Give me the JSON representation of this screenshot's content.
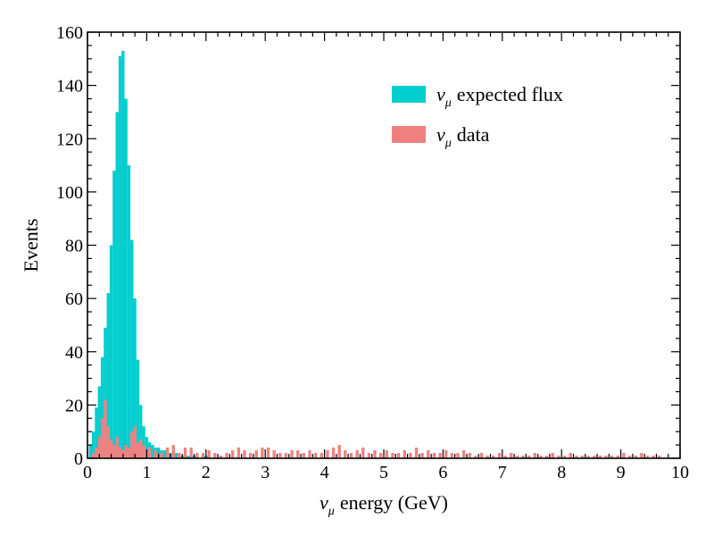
{
  "chart_data": {
    "type": "bar",
    "xlabel": {
      "symbol": "ν",
      "subscript": "μ",
      "text": "energy (GeV)"
    },
    "ylabel": "Events",
    "xlim": [
      0,
      10
    ],
    "ylim": [
      0,
      160
    ],
    "xticks": [
      "0",
      "1",
      "2",
      "3",
      "4",
      "5",
      "6",
      "7",
      "8",
      "9",
      "10"
    ],
    "yticks": [
      "0",
      "20",
      "40",
      "60",
      "80",
      "100",
      "120",
      "140",
      "160"
    ],
    "legend_position": "upper-right",
    "series": [
      {
        "name": {
          "symbol": "ν",
          "subscript": "μ",
          "text": "expected flux"
        },
        "color": "#00cdcd",
        "points": [
          [
            0.05,
            5
          ],
          [
            0.1,
            10
          ],
          [
            0.15,
            19
          ],
          [
            0.2,
            27
          ],
          [
            0.25,
            38
          ],
          [
            0.3,
            49
          ],
          [
            0.35,
            62
          ],
          [
            0.4,
            80
          ],
          [
            0.45,
            108
          ],
          [
            0.5,
            130
          ],
          [
            0.55,
            151
          ],
          [
            0.6,
            153
          ],
          [
            0.65,
            135
          ],
          [
            0.7,
            110
          ],
          [
            0.75,
            82
          ],
          [
            0.8,
            60
          ],
          [
            0.85,
            37
          ],
          [
            0.9,
            20
          ],
          [
            0.95,
            12
          ],
          [
            1.0,
            8
          ],
          [
            1.05,
            6
          ],
          [
            1.1,
            5
          ],
          [
            1.15,
            4
          ],
          [
            1.2,
            4
          ],
          [
            1.25,
            3
          ],
          [
            1.3,
            3
          ],
          [
            1.35,
            2
          ],
          [
            1.4,
            2
          ],
          [
            1.5,
            2
          ],
          [
            1.6,
            1
          ],
          [
            1.7,
            1
          ],
          [
            1.8,
            1
          ],
          [
            2.0,
            1
          ]
        ]
      },
      {
        "name": {
          "symbol": "ν",
          "subscript": "μ",
          "text": "data"
        },
        "color": "#f08080",
        "points": [
          [
            0.1,
            2
          ],
          [
            0.15,
            4
          ],
          [
            0.2,
            8
          ],
          [
            0.25,
            15
          ],
          [
            0.3,
            22
          ],
          [
            0.35,
            12
          ],
          [
            0.4,
            7
          ],
          [
            0.45,
            5
          ],
          [
            0.5,
            8
          ],
          [
            0.55,
            4
          ],
          [
            0.6,
            3
          ],
          [
            0.65,
            5
          ],
          [
            0.7,
            4
          ],
          [
            0.75,
            10
          ],
          [
            0.8,
            12
          ],
          [
            0.85,
            6
          ],
          [
            0.9,
            7
          ],
          [
            0.95,
            5
          ],
          [
            1.0,
            3
          ],
          [
            1.05,
            4
          ],
          [
            1.15,
            3
          ],
          [
            1.25,
            2
          ],
          [
            1.35,
            4
          ],
          [
            1.45,
            5
          ],
          [
            1.55,
            2
          ],
          [
            1.65,
            4
          ],
          [
            1.75,
            4
          ],
          [
            1.85,
            2
          ],
          [
            1.95,
            2
          ],
          [
            2.05,
            3
          ],
          [
            2.15,
            2
          ],
          [
            2.25,
            1
          ],
          [
            2.35,
            2
          ],
          [
            2.45,
            3
          ],
          [
            2.55,
            4
          ],
          [
            2.65,
            3
          ],
          [
            2.75,
            2
          ],
          [
            2.85,
            3
          ],
          [
            2.95,
            4
          ],
          [
            3.05,
            4
          ],
          [
            3.15,
            3
          ],
          [
            3.25,
            2
          ],
          [
            3.35,
            2
          ],
          [
            3.45,
            3
          ],
          [
            3.55,
            3
          ],
          [
            3.65,
            2
          ],
          [
            3.75,
            3
          ],
          [
            3.85,
            2
          ],
          [
            3.95,
            2
          ],
          [
            4.05,
            3
          ],
          [
            4.15,
            4
          ],
          [
            4.25,
            5
          ],
          [
            4.35,
            3
          ],
          [
            4.45,
            2
          ],
          [
            4.55,
            3
          ],
          [
            4.65,
            4
          ],
          [
            4.75,
            2
          ],
          [
            4.85,
            3
          ],
          [
            4.95,
            2
          ],
          [
            5.05,
            3
          ],
          [
            5.15,
            2
          ],
          [
            5.25,
            2
          ],
          [
            5.35,
            3
          ],
          [
            5.45,
            2
          ],
          [
            5.55,
            4
          ],
          [
            5.65,
            2
          ],
          [
            5.75,
            3
          ],
          [
            5.85,
            2
          ],
          [
            5.95,
            2
          ],
          [
            6.05,
            3
          ],
          [
            6.15,
            2
          ],
          [
            6.25,
            2
          ],
          [
            6.35,
            3
          ],
          [
            6.45,
            2
          ],
          [
            6.55,
            1
          ],
          [
            6.65,
            2
          ],
          [
            6.75,
            1
          ],
          [
            6.85,
            1
          ],
          [
            6.95,
            2
          ],
          [
            7.05,
            1
          ],
          [
            7.15,
            2
          ],
          [
            7.25,
            1
          ],
          [
            7.35,
            1
          ],
          [
            7.45,
            1
          ],
          [
            7.55,
            2
          ],
          [
            7.65,
            1
          ],
          [
            7.75,
            1
          ],
          [
            7.85,
            2
          ],
          [
            7.95,
            1
          ],
          [
            8.05,
            1
          ],
          [
            8.15,
            2
          ],
          [
            8.25,
            1
          ],
          [
            8.35,
            1
          ],
          [
            8.45,
            1
          ],
          [
            8.55,
            1
          ],
          [
            8.65,
            1
          ],
          [
            8.75,
            1
          ],
          [
            8.85,
            1
          ],
          [
            8.95,
            1
          ],
          [
            9.05,
            2
          ],
          [
            9.15,
            1
          ],
          [
            9.25,
            1
          ],
          [
            9.35,
            2
          ],
          [
            9.45,
            1
          ],
          [
            9.55,
            1
          ],
          [
            9.65,
            1
          ]
        ]
      }
    ]
  }
}
